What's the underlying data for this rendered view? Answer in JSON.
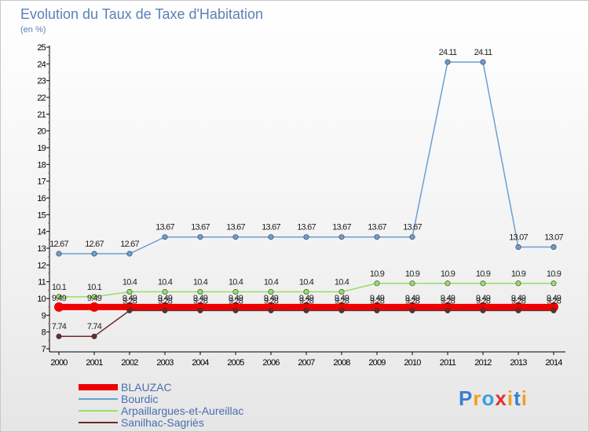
{
  "chart_data": {
    "type": "line",
    "title": "Evolution du Taux de Taxe d'Habitation",
    "subtitle": "(en %)",
    "xlabel": "",
    "ylabel": "",
    "ylim": [
      7,
      25
    ],
    "yticks": [
      7,
      8,
      9,
      10,
      11,
      12,
      13,
      14,
      15,
      16,
      17,
      18,
      19,
      20,
      21,
      22,
      23,
      24,
      25
    ],
    "categories": [
      "2000",
      "2001",
      "2002",
      "2003",
      "2004",
      "2005",
      "2006",
      "2007",
      "2008",
      "2009",
      "2010",
      "2011",
      "2012",
      "2013",
      "2014"
    ],
    "series": [
      {
        "name": "BLAUZAC",
        "color": "#ee0000",
        "values": [
          9.49,
          9.49,
          9.49,
          9.49,
          9.49,
          9.49,
          9.49,
          9.49,
          9.49,
          9.49,
          9.49,
          9.49,
          9.49,
          9.49,
          9.49
        ],
        "labels": [
          "9.49",
          "9.49",
          "9.49",
          "9.49",
          "9.49",
          "9.49",
          "9.49",
          "9.49",
          "9.49",
          "9.49",
          "9.49",
          "9.49",
          "9.49",
          "9.49",
          "9.49"
        ]
      },
      {
        "name": "Bourdic",
        "color": "#6a9fd2",
        "values": [
          12.67,
          12.67,
          12.67,
          13.67,
          13.67,
          13.67,
          13.67,
          13.67,
          13.67,
          13.67,
          13.67,
          24.11,
          24.11,
          13.07,
          13.07
        ],
        "labels": [
          "12.67",
          "12.67",
          "12.67",
          "13.67",
          "13.67",
          "13.67",
          "13.67",
          "13.67",
          "13.67",
          "13.67",
          "13.67",
          "24.11",
          "24.11",
          "13.07",
          "13.07"
        ]
      },
      {
        "name": "Arpaillargues-et-Aureillac",
        "color": "#99dd66",
        "values": [
          10.1,
          10.1,
          10.4,
          10.4,
          10.4,
          10.4,
          10.4,
          10.4,
          10.4,
          10.9,
          10.9,
          10.9,
          10.9,
          10.9,
          10.9
        ],
        "labels": [
          "10.1",
          "10.1",
          "10.4",
          "10.4",
          "10.4",
          "10.4",
          "10.4",
          "10.4",
          "10.4",
          "10.9",
          "10.9",
          "10.9",
          "10.9",
          "10.9",
          "10.9"
        ]
      },
      {
        "name": "Sanilhac-Sagriès",
        "color": "#6b2a2a",
        "values": [
          7.74,
          7.74,
          9.28,
          9.28,
          9.28,
          9.28,
          9.28,
          9.28,
          9.28,
          9.28,
          9.28,
          9.28,
          9.28,
          9.28,
          9.28
        ],
        "labels": [
          "7.74",
          "7.74",
          "9.28",
          "9.28",
          "9.28",
          "9.28",
          "9.28",
          "9.28",
          "9.28",
          "9.28",
          "9.28",
          "9.28",
          "9.28",
          "9.28",
          "9.28"
        ]
      }
    ],
    "grid": false,
    "legend": "bottom-left"
  },
  "logo": {
    "text": "Proxiti",
    "letters": [
      "P",
      "r",
      "o",
      "x",
      "i",
      "t",
      "i"
    ],
    "colors": [
      "#3a7fd0",
      "#f0a020",
      "#3a9fe0",
      "#e03030",
      "#f0a020",
      "#3a7fd0",
      "#f0a020"
    ]
  }
}
